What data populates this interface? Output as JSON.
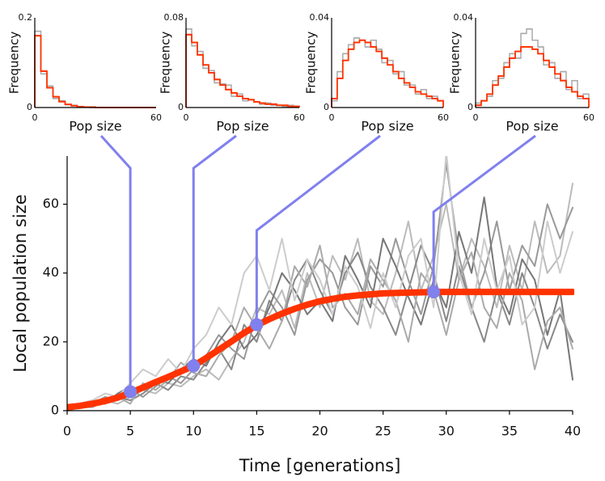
{
  "chart_data": [
    {
      "type": "line",
      "xlabel": "Time [generations]",
      "ylabel": "Local population size",
      "x": [
        0,
        1,
        2,
        3,
        4,
        5,
        6,
        7,
        8,
        9,
        10,
        11,
        12,
        13,
        14,
        15,
        16,
        17,
        18,
        19,
        20,
        21,
        22,
        23,
        24,
        25,
        26,
        27,
        28,
        29,
        30,
        31,
        32,
        33,
        34,
        35,
        36,
        37,
        38,
        39,
        40
      ],
      "xlim": [
        0,
        40
      ],
      "xticks": [
        0,
        5,
        10,
        15,
        20,
        25,
        30,
        35,
        40
      ],
      "ylim": [
        0,
        74
      ],
      "yticks": [
        0,
        20,
        40,
        60
      ],
      "series": [
        {
          "color": "#bbbbbb",
          "values": [
            1,
            2,
            1,
            3,
            2,
            4,
            6,
            5,
            8,
            7,
            10,
            12,
            9,
            15,
            20,
            30,
            28,
            35,
            24,
            40,
            30,
            45,
            38,
            50,
            32,
            28,
            40,
            55,
            35,
            45,
            60,
            38,
            50,
            42,
            30,
            48,
            35,
            55,
            40,
            45,
            66
          ]
        },
        {
          "color": "#888888",
          "values": [
            0,
            1,
            2,
            2,
            4,
            3,
            5,
            8,
            6,
            10,
            9,
            14,
            18,
            12,
            25,
            20,
            32,
            26,
            38,
            44,
            35,
            28,
            40,
            46,
            36,
            30,
            22,
            35,
            48,
            40,
            26,
            42,
            30,
            20,
            35,
            25,
            40,
            30,
            18,
            28,
            20
          ]
        },
        {
          "color": "#999999",
          "values": [
            1,
            1,
            2,
            4,
            3,
            6,
            4,
            7,
            10,
            8,
            12,
            16,
            22,
            18,
            15,
            28,
            35,
            30,
            22,
            38,
            44,
            40,
            30,
            25,
            42,
            36,
            50,
            38,
            28,
            42,
            72,
            45,
            30,
            40,
            55,
            35,
            48,
            42,
            60,
            50,
            59
          ]
        },
        {
          "color": "#777777",
          "values": [
            1,
            2,
            3,
            2,
            5,
            7,
            6,
            9,
            8,
            12,
            15,
            13,
            20,
            25,
            18,
            22,
            30,
            40,
            35,
            28,
            32,
            26,
            45,
            38,
            30,
            50,
            42,
            33,
            25,
            38,
            30,
            52,
            40,
            62,
            36,
            28,
            44,
            38,
            22,
            35,
            9
          ]
        },
        {
          "color": "#aaaaaa",
          "values": [
            0,
            1,
            1,
            3,
            4,
            2,
            8,
            6,
            9,
            14,
            11,
            10,
            16,
            20,
            30,
            24,
            18,
            26,
            42,
            36,
            48,
            30,
            34,
            28,
            44,
            38,
            32,
            20,
            40,
            35,
            22,
            38,
            46,
            30,
            24,
            40,
            32,
            12,
            26,
            30,
            18
          ]
        },
        {
          "color": "#cccccc",
          "values": [
            1,
            2,
            3,
            5,
            4,
            8,
            12,
            10,
            15,
            11,
            18,
            22,
            30,
            25,
            40,
            45,
            35,
            50,
            32,
            44,
            38,
            28,
            42,
            36,
            24,
            40,
            30,
            45,
            50,
            30,
            75,
            40,
            28,
            50,
            35,
            45,
            25,
            30,
            55,
            40,
            52
          ]
        },
        {
          "color": "#ff3300",
          "values": [
            1,
            1.4,
            2,
            2.8,
            3.8,
            5.2,
            6.7,
            8.3,
            9.8,
            11.4,
            13,
            15.3,
            17.7,
            20.1,
            22.6,
            24.8,
            26.6,
            28.2,
            29.6,
            30.8,
            31.8,
            32.5,
            33.1,
            33.5,
            33.8,
            34.1,
            34.2,
            34.3,
            34.4,
            34.5,
            34.5,
            34.5,
            34.5,
            34.5,
            34.5,
            34.5,
            34.5,
            34.5,
            34.5,
            34.5,
            34.5
          ]
        }
      ],
      "points": {
        "color": "#8080ee",
        "x": [
          5,
          10,
          15,
          29
        ],
        "values": [
          5.5,
          13,
          25,
          34.5
        ]
      }
    },
    {
      "type": "histogram",
      "xlabel": "Pop size",
      "ylabel": "Frequency",
      "bins": [
        0,
        3,
        6,
        9,
        12,
        15,
        18,
        21,
        24,
        27,
        30,
        33,
        36,
        39,
        42,
        45,
        48,
        51,
        54,
        57,
        60
      ],
      "xlim": [
        0,
        60
      ],
      "xticks": [
        0,
        60
      ],
      "ylim": [
        0,
        0.2
      ],
      "yticks": [
        0,
        0.2
      ],
      "series": [
        {
          "color": "#aaaaaa",
          "values": [
            0.17,
            0.075,
            0.048,
            0.02,
            0.015,
            0.006,
            0.005,
            0.002,
            0.001,
            0,
            0,
            0,
            0,
            0,
            0,
            0,
            0,
            0,
            0,
            0
          ]
        },
        {
          "color": "#ff3300",
          "values": [
            0.16,
            0.081,
            0.044,
            0.024,
            0.013,
            0.007,
            0.004,
            0.002,
            0.001,
            0.001,
            0,
            0,
            0,
            0,
            0,
            0,
            0,
            0,
            0,
            0
          ]
        }
      ]
    },
    {
      "type": "histogram",
      "xlabel": "Pop size",
      "ylabel": "Frequency",
      "bins": [
        0,
        3,
        6,
        9,
        12,
        15,
        18,
        21,
        24,
        27,
        30,
        33,
        36,
        39,
        42,
        45,
        48,
        51,
        54,
        57,
        60
      ],
      "xlim": [
        0,
        60
      ],
      "xticks": [
        0,
        60
      ],
      "ylim": [
        0,
        0.08
      ],
      "yticks": [
        0,
        0.08
      ],
      "series": [
        {
          "color": "#aaaaaa",
          "values": [
            0.07,
            0.055,
            0.05,
            0.035,
            0.033,
            0.022,
            0.021,
            0.02,
            0.01,
            0.012,
            0.006,
            0.007,
            0.005,
            0.003,
            0.004,
            0.002,
            0.002,
            0.001,
            0.002,
            0.001
          ]
        },
        {
          "color": "#ff3300",
          "values": [
            0.065,
            0.058,
            0.047,
            0.038,
            0.031,
            0.025,
            0.02,
            0.016,
            0.013,
            0.01,
            0.008,
            0.007,
            0.005,
            0.004,
            0.003,
            0.003,
            0.002,
            0.002,
            0.001,
            0.001
          ]
        }
      ]
    },
    {
      "type": "histogram",
      "xlabel": "Pop size",
      "ylabel": "Frequency",
      "bins": [
        0,
        3,
        6,
        9,
        12,
        15,
        18,
        21,
        24,
        27,
        30,
        33,
        36,
        39,
        42,
        45,
        48,
        51,
        54,
        57,
        60
      ],
      "xlim": [
        0,
        60
      ],
      "xticks": [
        0,
        60
      ],
      "ylim": [
        0,
        0.04
      ],
      "yticks": [
        0,
        0.04
      ],
      "series": [
        {
          "color": "#aaaaaa",
          "values": [
            0.003,
            0.016,
            0.024,
            0.028,
            0.031,
            0.03,
            0.027,
            0.03,
            0.026,
            0.02,
            0.021,
            0.015,
            0.016,
            0.01,
            0.01,
            0.006,
            0.008,
            0.004,
            0.005,
            0.003
          ]
        },
        {
          "color": "#ff3300",
          "values": [
            0.004,
            0.013,
            0.021,
            0.026,
            0.029,
            0.03,
            0.029,
            0.027,
            0.025,
            0.022,
            0.019,
            0.016,
            0.013,
            0.011,
            0.009,
            0.007,
            0.006,
            0.005,
            0.004,
            0.003
          ]
        }
      ]
    },
    {
      "type": "histogram",
      "xlabel": "Pop size",
      "ylabel": "Frequency",
      "bins": [
        0,
        3,
        6,
        9,
        12,
        15,
        18,
        21,
        24,
        27,
        30,
        33,
        36,
        39,
        42,
        45,
        48,
        51,
        54,
        57,
        60
      ],
      "xlim": [
        0,
        60
      ],
      "xticks": [
        0,
        60
      ],
      "ylim": [
        0,
        0.04
      ],
      "yticks": [
        0,
        0.04
      ],
      "series": [
        {
          "color": "#aaaaaa",
          "values": [
            0.002,
            0.003,
            0.005,
            0.012,
            0.013,
            0.02,
            0.024,
            0.022,
            0.033,
            0.035,
            0.03,
            0.027,
            0.019,
            0.02,
            0.013,
            0.016,
            0.008,
            0.012,
            0.004,
            0.006
          ]
        },
        {
          "color": "#ff3300",
          "values": [
            0.001,
            0.003,
            0.006,
            0.01,
            0.014,
            0.018,
            0.022,
            0.025,
            0.027,
            0.027,
            0.026,
            0.024,
            0.021,
            0.018,
            0.015,
            0.012,
            0.009,
            0.007,
            0.005,
            0.004
          ]
        }
      ]
    }
  ]
}
